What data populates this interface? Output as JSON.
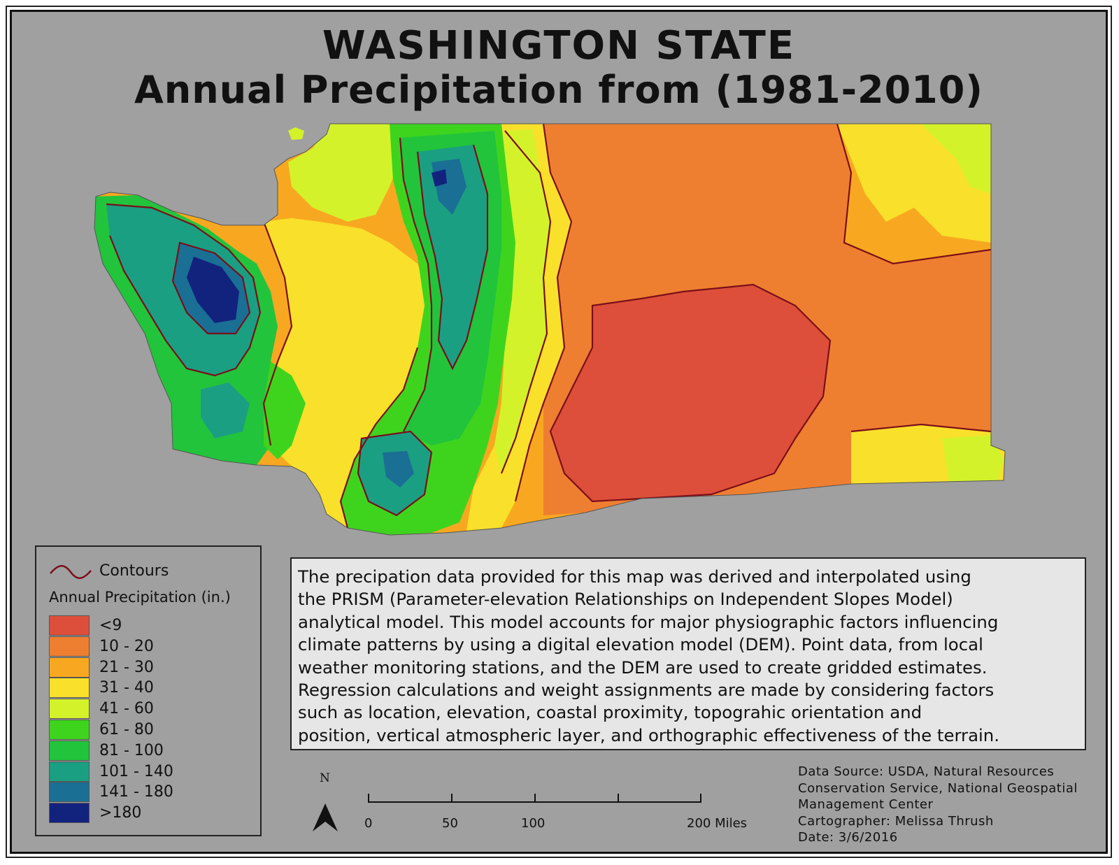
{
  "title": {
    "line1": "WASHINGTON STATE",
    "line2": "Annual Precipitation from (1981-2010)"
  },
  "legend": {
    "contours_label": "Contours",
    "title": "Annual Precipitation (in.)",
    "classes": [
      {
        "label": "<9",
        "color": "#dd4f3a"
      },
      {
        "label": "10 - 20",
        "color": "#ef7f30"
      },
      {
        "label": "21 - 30",
        "color": "#f7a820"
      },
      {
        "label": "31 - 40",
        "color": "#f9e02a"
      },
      {
        "label": "41 - 60",
        "color": "#d4f22a"
      },
      {
        "label": "61 - 80",
        "color": "#3ed41e"
      },
      {
        "label": "81 - 100",
        "color": "#22c43b"
      },
      {
        "label": "101 - 140",
        "color": "#1b9f82"
      },
      {
        "label": "141 - 180",
        "color": "#1a6f94"
      },
      {
        "label": ">180",
        "color": "#12237e"
      }
    ],
    "contour_color": "#7a0f1a"
  },
  "description": "The precipation data provided for this map was derived and interpolated using\nthe PRISM (Parameter-elevation Relationships on Independent Slopes Model)\nanalytical model. This model accounts for major physiographic factors influencing\nclimate patterns by using a digital elevation model (DEM).  Point data, from local\nweather monitoring stations, and the DEM are used to create gridded estimates.\nRegression calculations and weight assignments are made by considering factors\nsuch as location, elevation, coastal proximity, topograhic orientation and\nposition, vertical atmospheric layer, and orthographic effectiveness of the terrain.",
  "source": "Data Source: USDA, Natural Resources\nConservation Service, National Geospatial\nManagement Center\nCartographer: Melissa Thrush\nDate: 3/6/2016",
  "north_arrow": {
    "label": "N"
  },
  "scale_bar": {
    "labels": [
      "0",
      "50",
      "100",
      "200 Miles"
    ]
  },
  "background_color": "#a0a0a0"
}
